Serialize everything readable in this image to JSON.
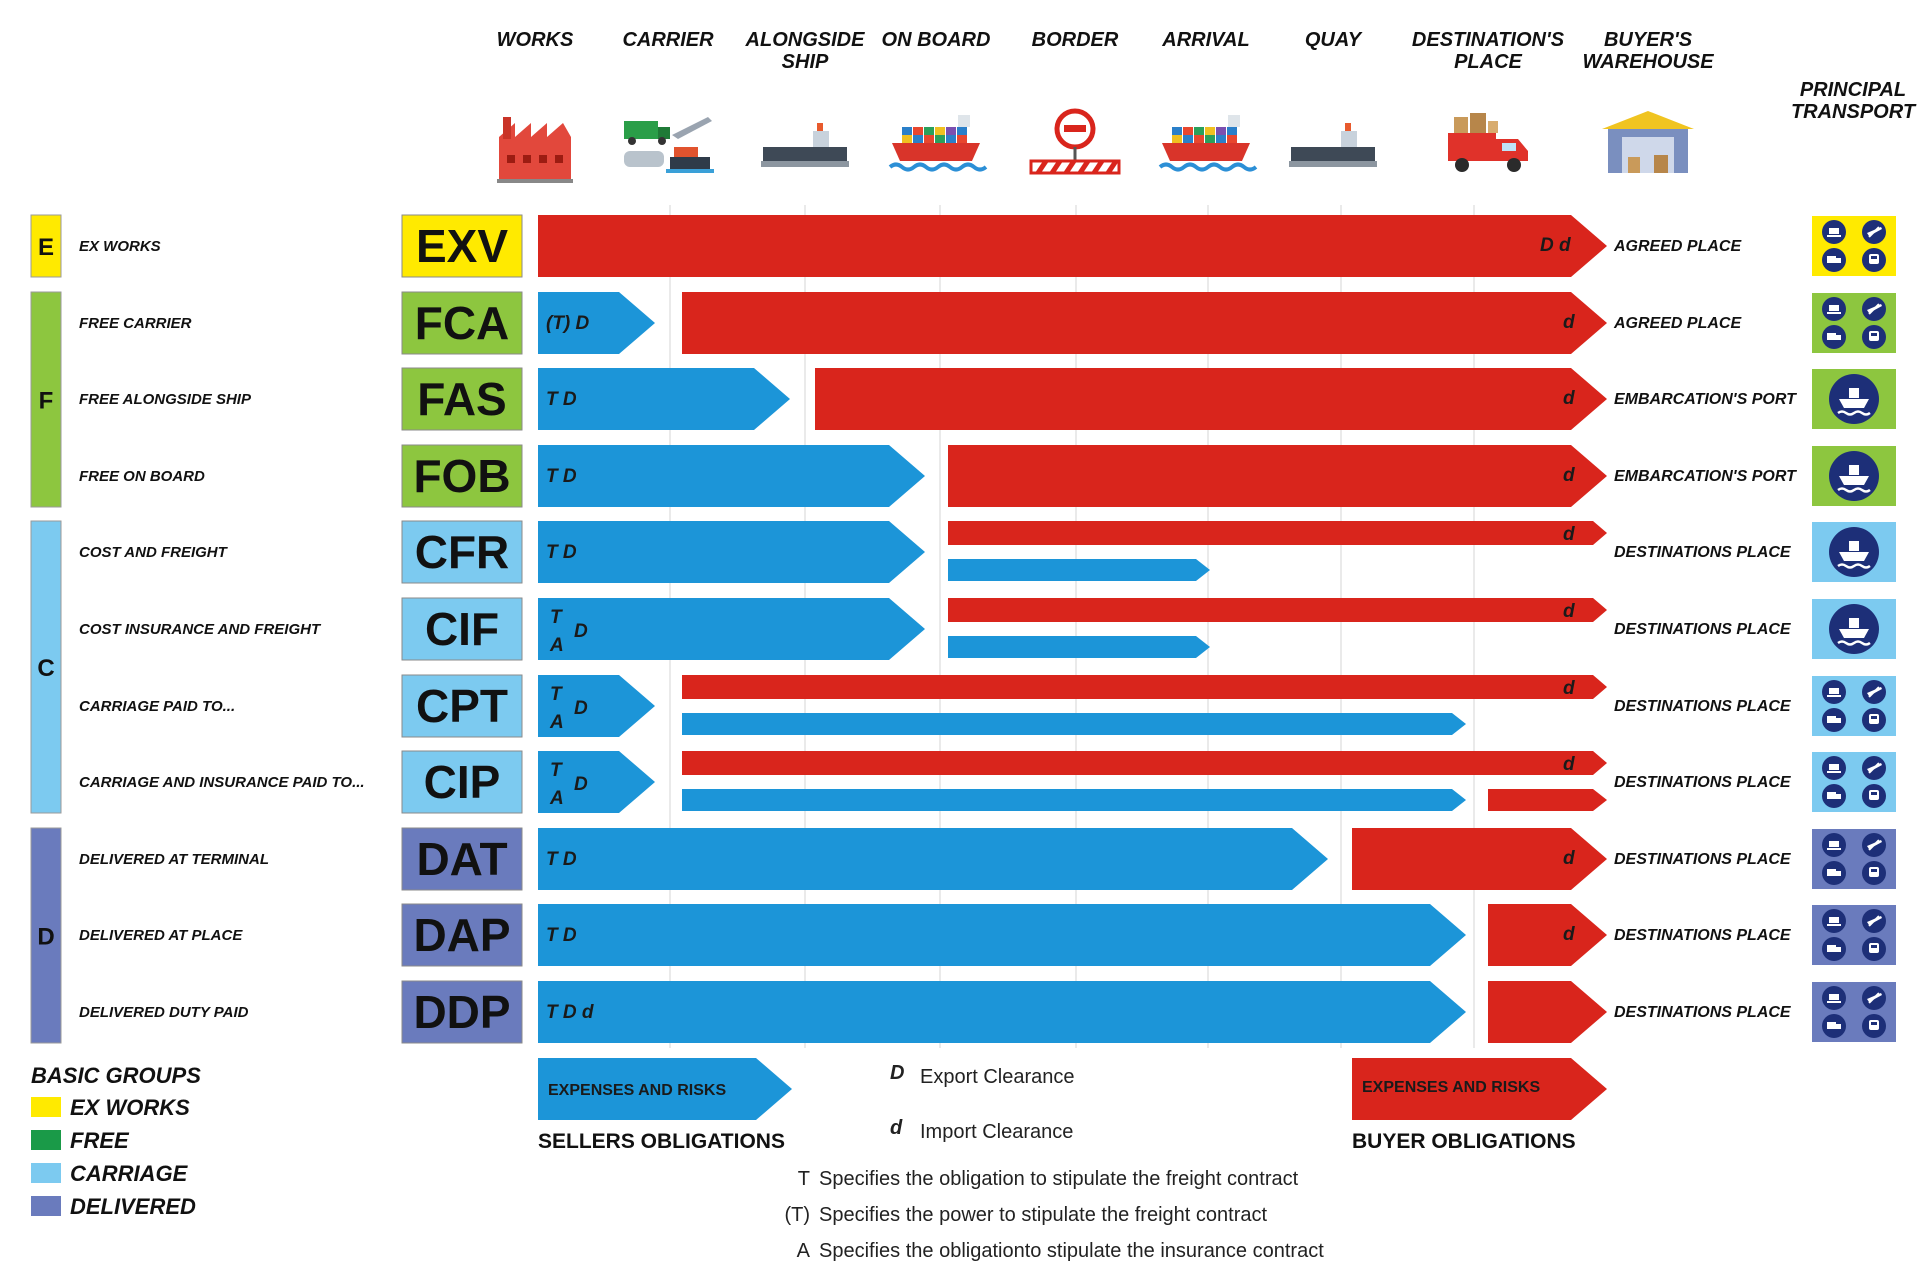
{
  "stages": [
    "WORKS",
    "CARRIER",
    "ALONGSIDE SHIP",
    "ON BOARD",
    "BORDER",
    "ARRIVAL",
    "QUAY",
    "DESTINATION'S PLACE",
    "BUYER'S WAREHOUSE"
  ],
  "stage_icons": [
    "factory-icon",
    "truck-plane-train-icon",
    "ship-alongside-icon",
    "cargo-ship-icon",
    "border-stop-icon",
    "arrival-ship-icon",
    "quay-ship-icon",
    "delivery-truck-icon",
    "warehouse-icon"
  ],
  "principal_transport_title": [
    "PRINCIPAL",
    "TRANSPORT"
  ],
  "groups": [
    {
      "letter": "E",
      "color": "#ffea00"
    },
    {
      "letter": "F",
      "color": "#8dc63f"
    },
    {
      "letter": "C",
      "color": "#7ccaf0"
    },
    {
      "letter": "D",
      "color": "#6a7bbd"
    }
  ],
  "terms": [
    {
      "code": "EXV",
      "name": "EX WORKS",
      "dest": "AGREED PLACE",
      "seller": "",
      "buyer_marker": "D d",
      "transport": "all-modes"
    },
    {
      "code": "FCA",
      "name": "FREE CARRIER",
      "dest": "AGREED PLACE",
      "seller": "(T) D",
      "buyer_marker": "d",
      "transport": "all-modes"
    },
    {
      "code": "FAS",
      "name": "FREE ALONGSIDE SHIP",
      "dest": "EMBARCATION'S PORT",
      "seller": "T D",
      "buyer_marker": "d",
      "transport": "sea"
    },
    {
      "code": "FOB",
      "name": "FREE ON BOARD",
      "dest": "EMBARCATION'S PORT",
      "seller": "T D",
      "buyer_marker": "d",
      "transport": "sea"
    },
    {
      "code": "CFR",
      "name": "COST AND FREIGHT",
      "dest": "DESTINATIONS PLACE",
      "seller": "T D",
      "buyer_marker": "d",
      "transport": "sea"
    },
    {
      "code": "CIF",
      "name": "COST INSURANCE AND FREIGHT",
      "dest": "DESTINATIONS PLACE",
      "seller": "T A D",
      "buyer_marker": "d",
      "transport": "sea"
    },
    {
      "code": "CPT",
      "name": "CARRIAGE PAID TO...",
      "dest": "DESTINATIONS PLACE",
      "seller": "T A D",
      "buyer_marker": "d",
      "transport": "all-modes"
    },
    {
      "code": "CIP",
      "name": "CARRIAGE AND INSURANCE PAID TO...",
      "dest": "DESTINATIONS PLACE",
      "seller": "T A D",
      "buyer_marker": "d",
      "transport": "all-modes"
    },
    {
      "code": "DAT",
      "name": "DELIVERED AT TERMINAL",
      "dest": "DESTINATIONS PLACE",
      "seller": "T D",
      "buyer_marker": "d",
      "transport": "all-modes"
    },
    {
      "code": "DAP",
      "name": "DELIVERED AT PLACE",
      "dest": "DESTINATIONS PLACE",
      "seller": "T D",
      "buyer_marker": "d",
      "transport": "all-modes"
    },
    {
      "code": "DDP",
      "name": "DELIVERED DUTY PAID",
      "dest": "DESTINATIONS PLACE",
      "seller": "T D d",
      "buyer_marker": "",
      "transport": "all-modes"
    }
  ],
  "legend": {
    "title": "BASIC GROUPS",
    "items": [
      {
        "label": "EX WORKS",
        "color": "#ffea00"
      },
      {
        "label": "FREE",
        "color": "#1a9a48"
      },
      {
        "label": "CARRIAGE",
        "color": "#7ccaf0"
      },
      {
        "label": "DELIVERED",
        "color": "#6a7bbd"
      }
    ]
  },
  "seller": {
    "arrow_label": "EXPENSES AND RISKS",
    "caption": "SELLERS OBLIGATIONS",
    "color": "#1c95d8"
  },
  "buyer": {
    "arrow_label": "EXPENSES AND RISKS",
    "caption": "BUYER OBLIGATIONS",
    "color": "#d9251c"
  },
  "clearance": [
    {
      "symbol": "D",
      "text": "Export Clearance"
    },
    {
      "symbol": "d",
      "text": "Import Clearance"
    }
  ],
  "notes": [
    {
      "symbol": "T",
      "text": "Specifies the obligation to stipulate the freight contract"
    },
    {
      "symbol": "(T)",
      "text": "Specifies the power to stipulate the freight contract"
    },
    {
      "symbol": "A",
      "text": "Specifies the obligationto stipulate the insurance contract"
    }
  ]
}
